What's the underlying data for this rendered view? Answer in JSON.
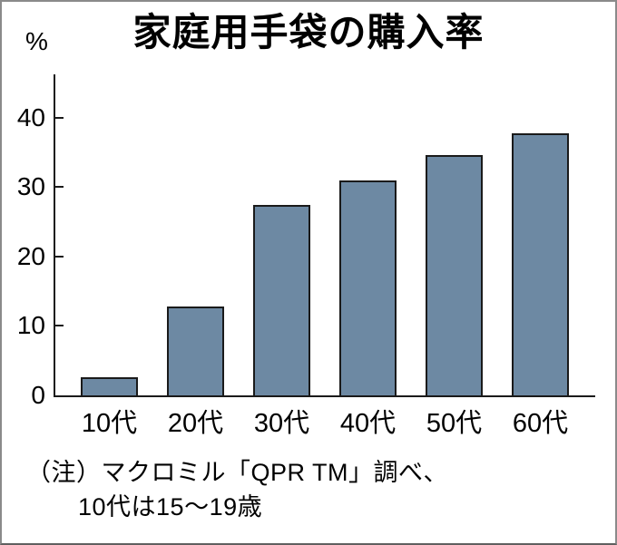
{
  "title": "家庭用手袋の購入率",
  "y_axis_unit": "%",
  "note": {
    "line1": "（注）マクロミル「QPR TM」調べ、",
    "line2": "10代は15～19歳"
  },
  "colors": {
    "bar_fill": "#6d89a3",
    "bar_border": "#1a1a1a",
    "axis": "#1a1a1a",
    "frame_border": "#8a8a8a",
    "text": "#000000",
    "background": "#ffffff"
  },
  "chart_data": {
    "type": "bar",
    "title": "家庭用手袋の購入率",
    "categories": [
      "10代",
      "20代",
      "30代",
      "40代",
      "50代",
      "60代"
    ],
    "values": [
      2.6,
      12.8,
      27.4,
      31.0,
      34.6,
      37.8
    ],
    "xlabel": "",
    "ylabel": "%",
    "ylim": [
      0,
      46.5
    ],
    "yticks": [
      0,
      10,
      20,
      30,
      40
    ],
    "grid": false,
    "legend": "none"
  }
}
